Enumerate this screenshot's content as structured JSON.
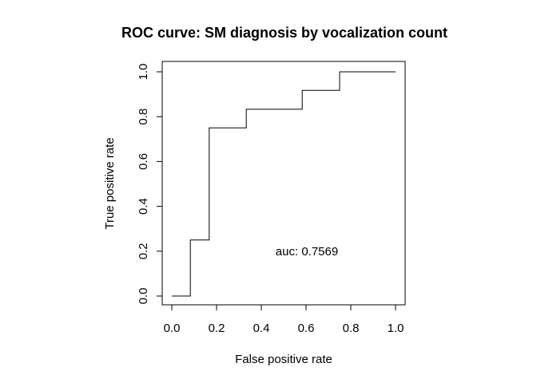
{
  "chart_data": {
    "type": "line",
    "title": "ROC curve:  SM diagnosis by vocalization count",
    "xlabel": "False positive rate",
    "ylabel": "True positive rate",
    "xlim": [
      0,
      1
    ],
    "ylim": [
      0,
      1
    ],
    "x_ticks": [
      "0.0",
      "0.2",
      "0.4",
      "0.6",
      "0.8",
      "1.0"
    ],
    "y_ticks": [
      "0.0",
      "0.2",
      "0.4",
      "0.6",
      "0.8",
      "1.0"
    ],
    "grid": false,
    "legend": "none",
    "series": [
      {
        "step": true,
        "x": [
          0.0,
          0.083,
          0.083,
          0.167,
          0.167,
          0.333,
          0.333,
          0.583,
          0.583,
          0.75,
          0.75,
          1.0
        ],
        "y": [
          0.0,
          0.0,
          0.25,
          0.25,
          0.75,
          0.75,
          0.833,
          0.833,
          0.917,
          0.917,
          1.0,
          1.0
        ]
      }
    ],
    "annotation": "auc:  0.7569",
    "line_color": "#000000"
  }
}
